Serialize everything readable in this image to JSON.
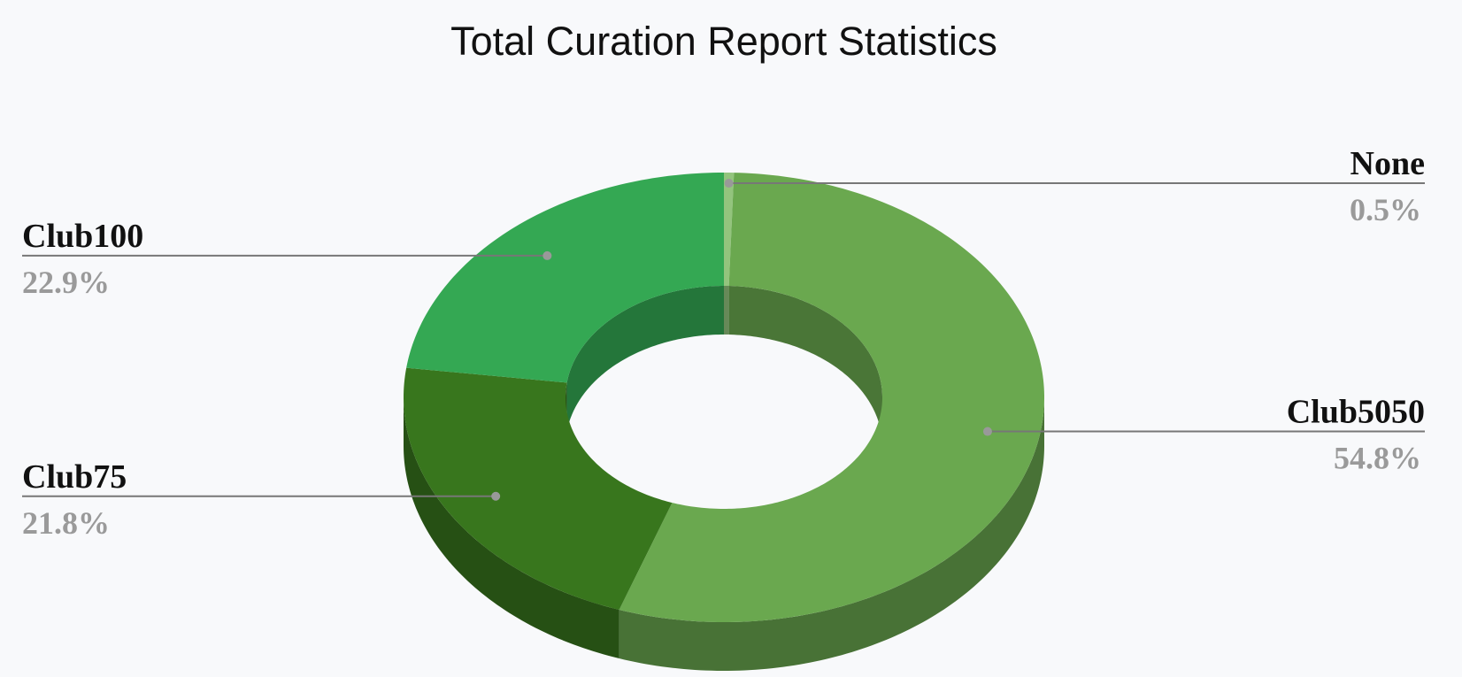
{
  "chart_data": {
    "type": "donut3d",
    "title": "Total Curation Report Statistics",
    "categories": [
      "None",
      "Club5050",
      "Club75",
      "Club100"
    ],
    "values": [
      0.5,
      54.8,
      21.8,
      22.9
    ],
    "value_labels": [
      "0.5%",
      "54.8%",
      "21.8%",
      "22.9%"
    ],
    "colors": [
      "#93c47d",
      "#6aa84f",
      "#38761d",
      "#34a853"
    ]
  }
}
